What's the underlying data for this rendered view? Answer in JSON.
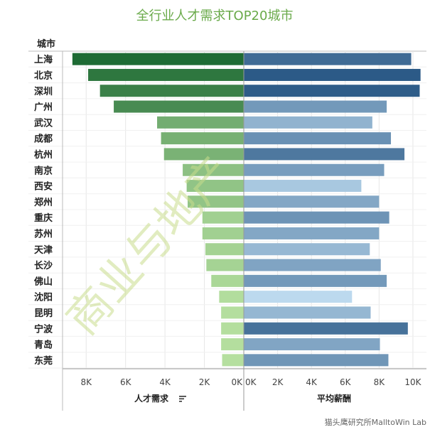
{
  "title": "全行业人才需求TOP20城市",
  "row_header": "城市",
  "watermark": "商业与地产",
  "credit": "猫头鹰研究所MalltoWin Lab",
  "colors": {
    "title": "#6aaa4a",
    "demand_dark": "#1e6b34",
    "demand_light": "#b5df9f",
    "salary_dark": "#2c5a87",
    "salary_light": "#bcd9ee"
  },
  "chart_data": [
    {
      "type": "bar",
      "orientation": "horizontal",
      "direction": "right-to-left",
      "title": "全行业人才需求TOP20城市",
      "xlabel": "人才需求",
      "ylabel": "城市",
      "xlim": [
        0,
        9200
      ],
      "ticks": [
        "8K",
        "6K",
        "4K",
        "2K",
        "0K"
      ],
      "tick_values": [
        8000,
        6000,
        4000,
        2000,
        0
      ],
      "grid": true,
      "categories": [
        "上海",
        "北京",
        "深圳",
        "广州",
        "武汉",
        "成都",
        "杭州",
        "南京",
        "西安",
        "郑州",
        "重庆",
        "苏州",
        "天津",
        "长沙",
        "佛山",
        "沈阳",
        "昆明",
        "宁波",
        "青岛",
        "东莞"
      ],
      "values": [
        8700,
        7900,
        7300,
        6600,
        4400,
        4200,
        4050,
        3100,
        2900,
        2850,
        2100,
        2100,
        1950,
        1900,
        1650,
        1250,
        1150,
        1150,
        1150,
        1100
      ]
    },
    {
      "type": "bar",
      "orientation": "horizontal",
      "xlabel": "平均薪酬",
      "xlim": [
        0,
        10800
      ],
      "ticks": [
        "0K",
        "2K",
        "4K",
        "6K",
        "8K",
        "10K"
      ],
      "tick_values": [
        0,
        2000,
        4000,
        6000,
        8000,
        10000
      ],
      "grid": true,
      "categories": [
        "上海",
        "北京",
        "深圳",
        "广州",
        "武汉",
        "成都",
        "杭州",
        "南京",
        "西安",
        "郑州",
        "重庆",
        "苏州",
        "天津",
        "长沙",
        "佛山",
        "沈阳",
        "昆明",
        "宁波",
        "青岛",
        "东莞"
      ],
      "values": [
        9900,
        10450,
        10400,
        8450,
        7600,
        8700,
        9500,
        8300,
        6950,
        8000,
        8600,
        8000,
        7450,
        8100,
        8450,
        6400,
        7500,
        9700,
        8050,
        8550
      ]
    }
  ]
}
